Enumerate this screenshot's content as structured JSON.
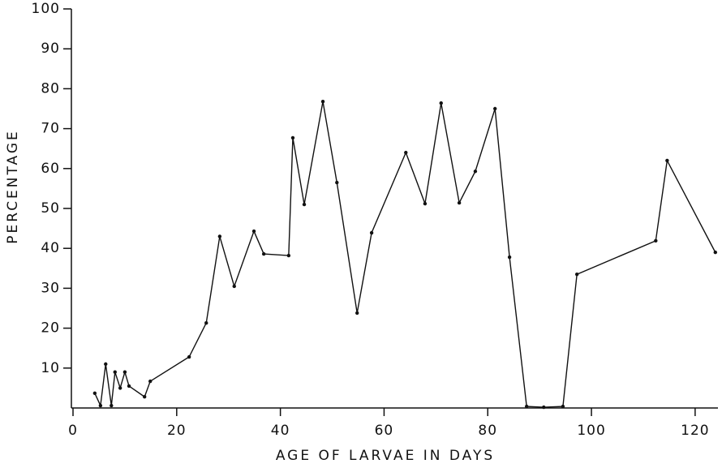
{
  "chart_data": {
    "type": "line",
    "x_label": "AGE OF LARVAE IN DAYS",
    "y_label": "PERCENTAGE",
    "x": [
      4.2,
      5.3,
      6.3,
      7.4,
      8.1,
      9.1,
      10.0,
      10.8,
      13.8,
      14.9,
      22.4,
      25.7,
      28.3,
      31.1,
      34.9,
      36.8,
      41.6,
      42.4,
      44.6,
      48.2,
      50.9,
      54.8,
      57.6,
      64.2,
      67.9,
      71.0,
      74.5,
      77.6,
      81.4,
      84.2,
      87.5,
      90.8,
      94.5,
      97.2,
      112.4,
      114.6,
      123.9
    ],
    "series": [
      {
        "color": "#111111",
        "values": [
          3.7,
          0.6,
          11,
          0.6,
          9,
          5,
          9,
          5.5,
          2.8,
          6.7,
          12.8,
          21.3,
          43,
          30.5,
          44.3,
          38.6,
          38.2,
          67.7,
          51,
          76.8,
          56.5,
          23.8,
          43.9,
          64,
          51.2,
          76.4,
          51.4,
          59.3,
          75,
          37.8,
          0.4,
          0.2,
          0.4,
          33.5,
          41.9,
          62,
          39
        ]
      }
    ],
    "xlim": [
      0,
      124.4
    ],
    "ylim": [
      0,
      100
    ],
    "xticks": [
      0,
      20,
      40,
      60,
      80,
      100,
      120
    ],
    "yticks": [
      10,
      20,
      30,
      40,
      50,
      60,
      70,
      80,
      90,
      100
    ]
  }
}
